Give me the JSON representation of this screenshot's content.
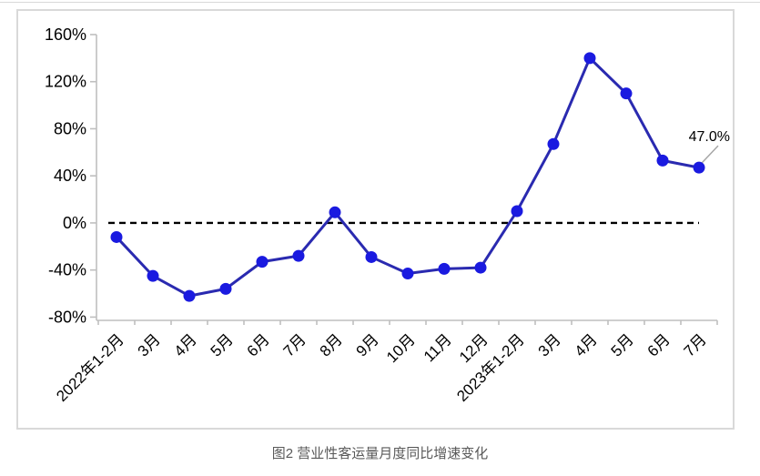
{
  "caption": "图2  营业性客运量月度同比增速变化",
  "colors": {
    "line": "#2a2ab0",
    "marker": "#1a1ae0",
    "axis": "#bfbfbf",
    "zero_line": "#000000",
    "leader": "#a6a6a6",
    "border": "#d9d9d9",
    "caption": "#595959"
  },
  "chart_data": {
    "type": "line",
    "title": "图2  营业性客运量月度同比增速变化",
    "xlabel": "",
    "ylabel": "",
    "categories": [
      "2022年1-2月",
      "3月",
      "4月",
      "5月",
      "6月",
      "7月",
      "8月",
      "9月",
      "10月",
      "11月",
      "12月",
      "2023年1-2月",
      "3月",
      "4月",
      "5月",
      "6月",
      "7月"
    ],
    "series": [
      {
        "name": "营业性客运量月度同比增速",
        "values": [
          -12,
          -45,
          -62,
          -56,
          -33,
          -28,
          9,
          -29,
          -43,
          -39,
          -38,
          10,
          67,
          140,
          110,
          53,
          47
        ]
      }
    ],
    "ylim": [
      -80,
      160
    ],
    "yticks": [
      {
        "value": 160,
        "label": "160%"
      },
      {
        "value": 120,
        "label": "120%"
      },
      {
        "value": 80,
        "label": "80%"
      },
      {
        "value": 40,
        "label": "40%"
      },
      {
        "value": 0,
        "label": "0%"
      },
      {
        "value": -40,
        "label": "-40%"
      },
      {
        "value": -80,
        "label": "-80%"
      }
    ],
    "grid": false,
    "zero_line_style": "dashed",
    "legend": "none",
    "last_point_label": "47.0%"
  }
}
